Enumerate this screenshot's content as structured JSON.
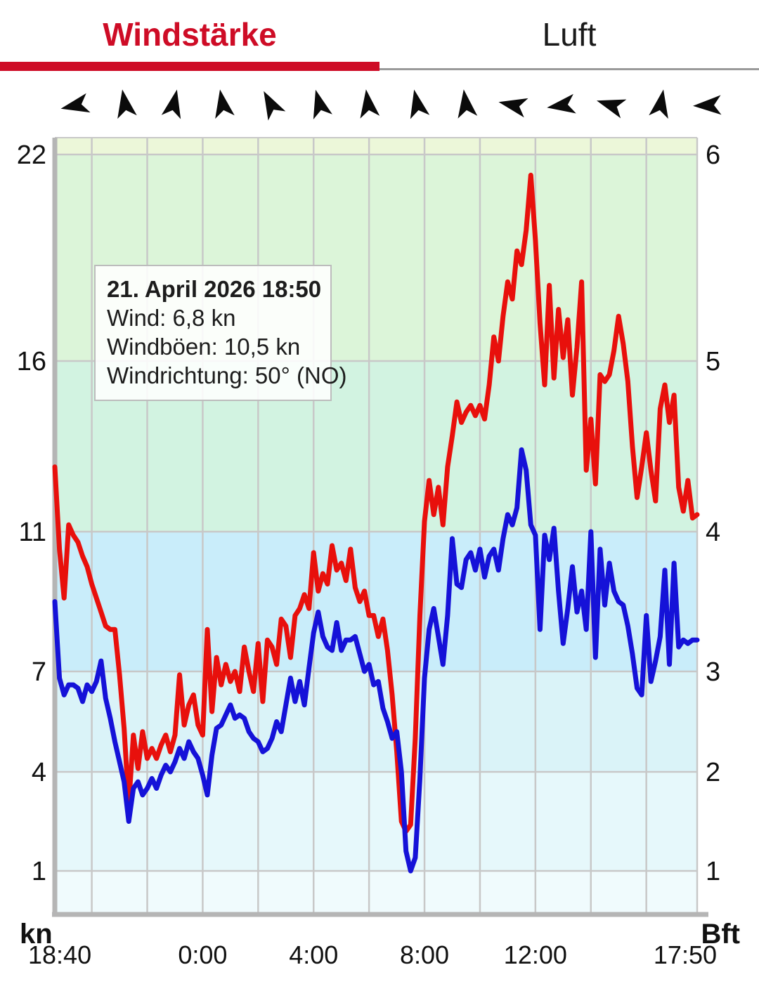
{
  "tabs": {
    "active_label": "Windstärke",
    "inactive_label": "Luft",
    "accent_color": "#ce0c26"
  },
  "wind_arrows": {
    "description": "wind-direction-arrows",
    "angles_deg": [
      258,
      350,
      12,
      350,
      332,
      345,
      352,
      348,
      352,
      282,
      262,
      287,
      10,
      268
    ]
  },
  "tooltip": {
    "title": "21. April 2026 18:50",
    "wind_line": "Wind: 6,8 kn",
    "gusts_line": "Windböen: 10,5 kn",
    "direction_line": "Windrichtung: 50° (NO)"
  },
  "chart_data": {
    "type": "line",
    "title": "Windstärke",
    "x_interval_minutes": 10,
    "x_ticks": [
      {
        "label": "18:40",
        "index": 0
      },
      {
        "label": "0:00",
        "index": 32
      },
      {
        "label": "4:00",
        "index": 56
      },
      {
        "label": "8:00",
        "index": 80
      },
      {
        "label": "12:00",
        "index": 104
      },
      {
        "label": "17:50",
        "index": 139
      }
    ],
    "grid_every_index": 12,
    "grid_start_index": 8,
    "y_left": {
      "unit": "kn",
      "ticks": [
        22,
        16,
        11,
        7,
        4,
        1
      ]
    },
    "y_right": {
      "unit": "Bft",
      "ticks": [
        6,
        5,
        4,
        3,
        2,
        1
      ]
    },
    "beaufort_bands": [
      {
        "bft": 7,
        "color": "#ecf7d9"
      },
      {
        "bft": 6,
        "color": "#dcf5d9"
      },
      {
        "bft": 5,
        "color": "#d2f3e1"
      },
      {
        "bft": 4,
        "color": "#c9edfa"
      },
      {
        "bft": 3,
        "color": "#daf3f8"
      },
      {
        "bft": 2,
        "color": "#e6f8fb"
      },
      {
        "bft": 1,
        "color": "#f0fbfd"
      }
    ],
    "grid_color": "#c8c8c8",
    "spine_color": "#b5b5b5",
    "series": [
      {
        "name": "Windböen",
        "color": "#e8100c",
        "values": [
          12.9,
          10.5,
          9.1,
          11.2,
          10.9,
          10.7,
          10.3,
          10.0,
          9.5,
          9.1,
          8.7,
          8.3,
          8.2,
          8.2,
          6.9,
          5.3,
          3.0,
          5.1,
          4.1,
          5.2,
          4.4,
          4.7,
          4.4,
          4.8,
          5.1,
          4.6,
          5.1,
          6.9,
          5.4,
          6.0,
          6.3,
          5.4,
          5.1,
          8.2,
          5.8,
          7.4,
          6.6,
          7.2,
          6.7,
          7.0,
          6.4,
          7.7,
          7.0,
          6.4,
          7.8,
          6.1,
          7.9,
          7.7,
          7.2,
          8.5,
          8.3,
          7.4,
          8.6,
          8.8,
          9.2,
          8.8,
          10.4,
          9.3,
          9.8,
          9.5,
          10.6,
          9.9,
          10.1,
          9.6,
          10.5,
          9.4,
          9.0,
          9.3,
          8.6,
          8.6,
          8.0,
          8.5,
          7.6,
          6.3,
          4.6,
          2.5,
          2.2,
          2.4,
          5.0,
          8.6,
          11.3,
          12.5,
          11.5,
          12.3,
          11.2,
          12.9,
          13.8,
          14.8,
          14.2,
          14.5,
          14.7,
          14.4,
          14.7,
          14.3,
          15.3,
          16.7,
          16.0,
          17.3,
          18.3,
          17.8,
          19.2,
          18.8,
          19.8,
          21.4,
          19.5,
          17.1,
          15.3,
          18.2,
          15.5,
          17.5,
          16.1,
          17.2,
          15.0,
          16.4,
          18.3,
          12.8,
          14.3,
          12.4,
          15.6,
          15.4,
          15.6,
          16.3,
          17.3,
          16.5,
          15.4,
          13.5,
          12.0,
          12.9,
          13.9,
          12.8,
          11.9,
          14.6,
          15.3,
          14.2,
          15.0,
          12.3,
          11.6,
          12.5,
          11.4,
          11.5
        ]
      },
      {
        "name": "Wind",
        "color": "#1512d8",
        "values": [
          9.0,
          6.8,
          6.3,
          6.6,
          6.6,
          6.5,
          6.1,
          6.6,
          6.4,
          6.7,
          7.3,
          6.2,
          5.6,
          4.9,
          4.3,
          3.7,
          2.5,
          3.5,
          3.7,
          3.3,
          3.5,
          3.8,
          3.5,
          3.9,
          4.2,
          4.0,
          4.3,
          4.7,
          4.4,
          4.9,
          4.6,
          4.4,
          3.9,
          3.3,
          4.5,
          5.3,
          5.4,
          5.7,
          6.0,
          5.6,
          5.7,
          5.6,
          5.2,
          5.0,
          4.9,
          4.6,
          4.7,
          5.0,
          5.5,
          5.2,
          6.0,
          6.8,
          6.1,
          6.7,
          6.0,
          7.1,
          8.1,
          8.7,
          8.0,
          7.7,
          7.6,
          8.4,
          7.6,
          7.9,
          7.9,
          8.0,
          7.5,
          7.0,
          7.2,
          6.6,
          6.7,
          5.9,
          5.5,
          5.0,
          5.2,
          4.0,
          1.6,
          1.0,
          1.4,
          3.8,
          6.8,
          8.2,
          8.8,
          8.0,
          7.2,
          8.6,
          10.8,
          9.5,
          9.4,
          10.2,
          10.4,
          9.9,
          10.5,
          9.7,
          10.3,
          10.5,
          9.9,
          10.8,
          11.5,
          11.2,
          11.7,
          13.4,
          12.8,
          11.2,
          10.9,
          8.2,
          10.9,
          10.2,
          11.1,
          9.3,
          7.8,
          8.8,
          10.0,
          8.7,
          9.3,
          8.2,
          11.0,
          7.4,
          10.5,
          8.9,
          10.1,
          9.3,
          9.0,
          8.9,
          8.3,
          7.5,
          6.5,
          6.3,
          8.6,
          6.7,
          7.3,
          8.0,
          9.9,
          7.2,
          10.1,
          7.7,
          7.9,
          7.8,
          7.9,
          7.9
        ]
      }
    ],
    "kn_anchors": [
      [
        1,
        1240
      ],
      [
        4,
        1099
      ],
      [
        7,
        956
      ],
      [
        11,
        757
      ],
      [
        16,
        514
      ],
      [
        22,
        220
      ]
    ]
  }
}
